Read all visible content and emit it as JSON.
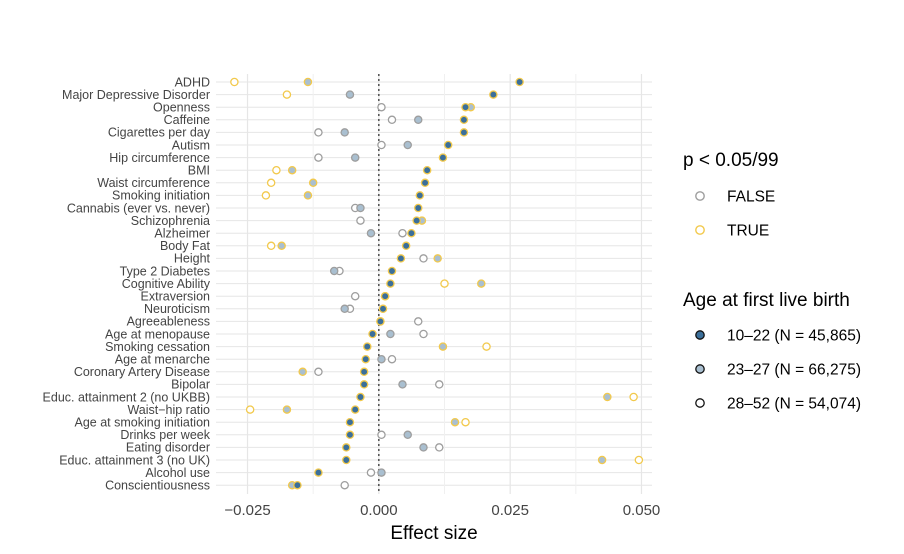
{
  "chart_data": {
    "type": "scatter",
    "xlabel": "Effect size",
    "ylabel": "",
    "xlim": [
      -0.031,
      0.052
    ],
    "x_ticks": [
      -0.025,
      0.0,
      0.025,
      0.05
    ],
    "x_tick_labels": [
      "−0.025",
      "0.000",
      "0.025",
      "0.050"
    ],
    "reference_line": 0,
    "grid": true,
    "legend_position": "right",
    "colors": {
      "sig_false": "#9e9e9e",
      "sig_true": "#f2c94c",
      "g1_fill": "#3b6f9a",
      "g2_fill": "#a9bfd0",
      "g3_fill": "#ffffff",
      "grid": "#e6e6e6"
    },
    "legend_significance": {
      "title": "p < 0.05/99",
      "items": [
        {
          "label": "FALSE",
          "key": "sig_false"
        },
        {
          "label": "TRUE",
          "key": "sig_true"
        }
      ]
    },
    "legend_group": {
      "title": "Age at first live birth",
      "items": [
        {
          "label": "10–22 (N = 45,865)",
          "key": "g1_fill"
        },
        {
          "label": "23–27 (N = 66,275)",
          "key": "g2_fill"
        },
        {
          "label": "28–52 (N = 54,074)",
          "key": "g3_fill"
        }
      ]
    },
    "categories": [
      "ADHD",
      "Major Depressive Disorder",
      "Openness",
      "Caffeine",
      "Cigarettes per day",
      "Autism",
      "Hip circumference",
      "BMI",
      "Waist circumference",
      "Smoking initiation",
      "Cannabis (ever vs. never)",
      "Schizophrenia",
      "Alzheimer",
      "Body Fat",
      "Height",
      "Type 2 Diabetes",
      "Cognitive Ability",
      "Extraversion",
      "Neuroticism",
      "Agreeableness",
      "Age at menopause",
      "Smoking cessation",
      "Age at menarche",
      "Coronary Artery Disease",
      "Bipolar",
      "Educ. attainment 2 (no UKBB)",
      "Waist−hip ratio",
      "Age at smoking initiation",
      "Drinks per week",
      "Eating disorder",
      "Educ. attainment 3 (no UK)",
      "Alcohol use",
      "Conscientiousness"
    ],
    "points": [
      {
        "category": "ADHD",
        "g1": [
          0.0268,
          1
        ],
        "g2": [
          -0.0135,
          1
        ],
        "g3": [
          -0.0275,
          1
        ]
      },
      {
        "category": "Major Depressive Disorder",
        "g1": [
          0.0218,
          1
        ],
        "g2": [
          -0.0055,
          0
        ],
        "g3": [
          -0.0175,
          1
        ]
      },
      {
        "category": "Openness",
        "g1": [
          0.0165,
          1
        ],
        "g2": [
          0.0175,
          1
        ],
        "g3": [
          0.0005,
          0
        ]
      },
      {
        "category": "Caffeine",
        "g1": [
          0.0162,
          1
        ],
        "g2": [
          0.0075,
          0
        ],
        "g3": [
          0.0025,
          0
        ]
      },
      {
        "category": "Cigarettes per day",
        "g1": [
          0.0162,
          1
        ],
        "g2": [
          -0.0065,
          0
        ],
        "g3": [
          -0.0115,
          0
        ]
      },
      {
        "category": "Autism",
        "g1": [
          0.0132,
          1
        ],
        "g2": [
          0.0055,
          0
        ],
        "g3": [
          0.0005,
          0
        ]
      },
      {
        "category": "Hip circumference",
        "g1": [
          0.0122,
          1
        ],
        "g2": [
          -0.0045,
          0
        ],
        "g3": [
          -0.0115,
          0
        ]
      },
      {
        "category": "BMI",
        "g1": [
          0.0092,
          1
        ],
        "g2": [
          -0.0165,
          1
        ],
        "g3": [
          -0.0195,
          1
        ]
      },
      {
        "category": "Waist circumference",
        "g1": [
          0.0088,
          1
        ],
        "g2": [
          -0.0125,
          1
        ],
        "g3": [
          -0.0205,
          1
        ]
      },
      {
        "category": "Smoking initiation",
        "g1": [
          0.0078,
          1
        ],
        "g2": [
          -0.0135,
          1
        ],
        "g3": [
          -0.0215,
          1
        ]
      },
      {
        "category": "Cannabis (ever vs. never)",
        "g1": [
          0.0075,
          1
        ],
        "g2": [
          -0.0035,
          0
        ],
        "g3": [
          -0.0045,
          0
        ]
      },
      {
        "category": "Schizophrenia",
        "g1": [
          0.0072,
          1
        ],
        "g2": [
          0.0082,
          1
        ],
        "g3": [
          -0.0035,
          0
        ]
      },
      {
        "category": "Alzheimer",
        "g1": [
          0.0062,
          1
        ],
        "g2": [
          -0.0015,
          0
        ],
        "g3": [
          0.0045,
          0
        ]
      },
      {
        "category": "Body Fat",
        "g1": [
          0.0052,
          1
        ],
        "g2": [
          -0.0185,
          1
        ],
        "g3": [
          -0.0205,
          1
        ]
      },
      {
        "category": "Height",
        "g1": [
          0.0042,
          1
        ],
        "g2": [
          0.0112,
          1
        ],
        "g3": [
          0.0085,
          0
        ]
      },
      {
        "category": "Type 2 Diabetes",
        "g1": [
          0.0025,
          1
        ],
        "g2": [
          -0.0085,
          0
        ],
        "g3": [
          -0.0075,
          0
        ]
      },
      {
        "category": "Cognitive Ability",
        "g1": [
          0.0022,
          1
        ],
        "g2": [
          0.0195,
          1
        ],
        "g3": [
          0.0125,
          1
        ]
      },
      {
        "category": "Extraversion",
        "g1": [
          0.0012,
          1
        ],
        "g2": [
          0.0012,
          1
        ],
        "g3": [
          -0.0045,
          0
        ]
      },
      {
        "category": "Neuroticism",
        "g1": [
          0.0008,
          1
        ],
        "g2": [
          -0.0065,
          0
        ],
        "g3": [
          -0.0055,
          0
        ]
      },
      {
        "category": "Agreeableness",
        "g1": [
          0.0003,
          1
        ],
        "g2": [
          0.0003,
          1
        ],
        "g3": [
          0.0075,
          0
        ]
      },
      {
        "category": "Age at menopause",
        "g1": [
          -0.0012,
          1
        ],
        "g2": [
          0.0022,
          0
        ],
        "g3": [
          0.0085,
          0
        ]
      },
      {
        "category": "Smoking cessation",
        "g1": [
          -0.0022,
          1
        ],
        "g2": [
          0.0122,
          1
        ],
        "g3": [
          0.0205,
          1
        ]
      },
      {
        "category": "Age at menarche",
        "g1": [
          -0.0025,
          1
        ],
        "g2": [
          0.0005,
          0
        ],
        "g3": [
          0.0025,
          0
        ]
      },
      {
        "category": "Coronary Artery Disease",
        "g1": [
          -0.0028,
          1
        ],
        "g2": [
          -0.0145,
          1
        ],
        "g3": [
          -0.0115,
          0
        ]
      },
      {
        "category": "Bipolar",
        "g1": [
          -0.0028,
          1
        ],
        "g2": [
          0.0045,
          0
        ],
        "g3": [
          0.0115,
          0
        ]
      },
      {
        "category": "Educ. attainment 2 (no UKBB)",
        "g1": [
          -0.0035,
          1
        ],
        "g2": [
          0.0435,
          1
        ],
        "g3": [
          0.0485,
          1
        ]
      },
      {
        "category": "Waist−hip ratio",
        "g1": [
          -0.0045,
          1
        ],
        "g2": [
          -0.0175,
          1
        ],
        "g3": [
          -0.0245,
          1
        ]
      },
      {
        "category": "Age at smoking initiation",
        "g1": [
          -0.0055,
          1
        ],
        "g2": [
          0.0145,
          1
        ],
        "g3": [
          0.0165,
          1
        ]
      },
      {
        "category": "Drinks per week",
        "g1": [
          -0.0055,
          1
        ],
        "g2": [
          0.0055,
          0
        ],
        "g3": [
          0.0005,
          0
        ]
      },
      {
        "category": "Eating disorder",
        "g1": [
          -0.0062,
          1
        ],
        "g2": [
          0.0085,
          0
        ],
        "g3": [
          0.0115,
          0
        ]
      },
      {
        "category": "Educ. attainment 3 (no UK)",
        "g1": [
          -0.0062,
          1
        ],
        "g2": [
          0.0425,
          1
        ],
        "g3": [
          0.0495,
          1
        ]
      },
      {
        "category": "Alcohol use",
        "g1": [
          -0.0115,
          1
        ],
        "g2": [
          0.0005,
          0
        ],
        "g3": [
          -0.0015,
          0
        ]
      },
      {
        "category": "Conscientiousness",
        "g1": [
          -0.0155,
          1
        ],
        "g2": [
          -0.0165,
          1
        ],
        "g3": [
          -0.0065,
          0
        ]
      }
    ]
  }
}
